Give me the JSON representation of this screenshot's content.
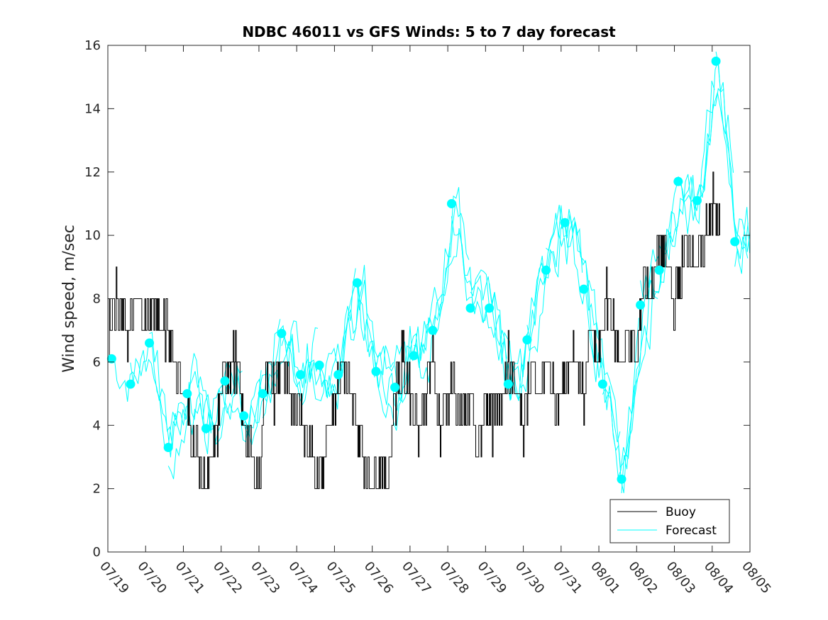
{
  "chart_data": {
    "type": "line",
    "title": "NDBC 46011 vs GFS Winds: 5 to 7 day forecast",
    "xlabel": "",
    "ylabel": "Wind speed, m/sec",
    "ylim": [
      0,
      16
    ],
    "yticks": [
      "0",
      "2",
      "4",
      "6",
      "8",
      "10",
      "12",
      "14",
      "16"
    ],
    "xlim": [
      "07/19",
      "08/05"
    ],
    "xticks": [
      "07/19",
      "07/20",
      "07/21",
      "07/22",
      "07/23",
      "07/24",
      "07/25",
      "07/26",
      "07/27",
      "07/28",
      "07/29",
      "07/30",
      "07/31",
      "08/01",
      "08/02",
      "08/03",
      "08/04",
      "08/05"
    ],
    "grid": false,
    "legend": {
      "placement": "bottom-right",
      "entries": [
        {
          "label": "Buoy",
          "color": "#000000"
        },
        {
          "label": "Forecast",
          "color": "#00FFFF"
        }
      ]
    },
    "colors": {
      "buoy": "#000000",
      "forecast": "#00FFFF"
    },
    "series": [
      {
        "name": "Buoy",
        "x_days": [
          0,
          0.2,
          0.4,
          0.6,
          0.8,
          1.0,
          1.2,
          1.4,
          1.6,
          1.8,
          2.0,
          2.2,
          2.4,
          2.6,
          2.8,
          3.0,
          3.2,
          3.4,
          3.6,
          3.8,
          4.0,
          4.2,
          4.4,
          4.6,
          4.8,
          5.0,
          5.2,
          5.4,
          5.6,
          5.8,
          6.0,
          6.2,
          6.4,
          6.6,
          6.8,
          7.0,
          7.2,
          7.4,
          7.6,
          7.8,
          8.0,
          8.2,
          8.4,
          8.6,
          8.8,
          9.0,
          9.2,
          9.4,
          9.6,
          9.8,
          10.0,
          10.2,
          10.4,
          10.6,
          10.8,
          11.0,
          11.2,
          11.4,
          11.6,
          11.8,
          12.0,
          12.2,
          12.4,
          12.6,
          12.8,
          13.0,
          13.2,
          13.4,
          13.6,
          13.8,
          14.0,
          14.2,
          14.4,
          14.6,
          14.8,
          15.0,
          15.2,
          15.4,
          15.6,
          15.8,
          16.0,
          16.2
        ],
        "values": [
          7,
          8,
          7,
          7,
          8,
          7,
          8,
          7,
          7,
          6,
          5,
          4,
          3,
          2,
          3,
          5,
          6,
          6,
          4,
          3,
          2,
          6,
          5,
          6,
          5,
          5,
          4,
          3,
          2,
          4,
          5,
          6,
          5,
          4,
          3,
          2,
          3,
          2,
          5,
          6,
          5,
          4,
          5,
          6,
          4,
          5,
          5,
          4,
          5,
          3,
          5,
          4,
          5,
          6,
          5,
          4,
          6,
          5,
          6,
          5,
          5,
          6,
          6,
          5,
          7,
          6,
          8,
          7,
          6,
          7,
          6,
          9,
          8,
          10,
          9,
          8,
          9,
          10,
          9,
          10,
          11,
          10
        ]
      },
      {
        "name": "Forecast",
        "x_days": [
          0.1,
          0.6,
          1.1,
          1.6,
          2.1,
          2.6,
          3.1,
          3.6,
          4.1,
          4.6,
          5.1,
          5.6,
          6.1,
          6.6,
          7.1,
          7.6,
          8.1,
          8.6,
          9.1,
          9.6,
          10.1,
          10.6,
          11.1,
          11.6,
          12.1,
          12.6,
          13.1,
          13.6,
          14.1,
          14.6,
          15.1,
          15.6,
          16.1,
          16.6
        ],
        "values": [
          6.1,
          5.3,
          6.6,
          3.3,
          5.0,
          3.9,
          5.4,
          4.3,
          5.0,
          6.9,
          5.6,
          5.9,
          5.6,
          8.5,
          5.7,
          5.2,
          6.2,
          7.0,
          11.0,
          7.7,
          7.7,
          5.3,
          6.7,
          8.9,
          10.4,
          8.3,
          5.3,
          2.3,
          7.8,
          8.9,
          11.7,
          11.1,
          15.5,
          9.8
        ]
      }
    ]
  }
}
